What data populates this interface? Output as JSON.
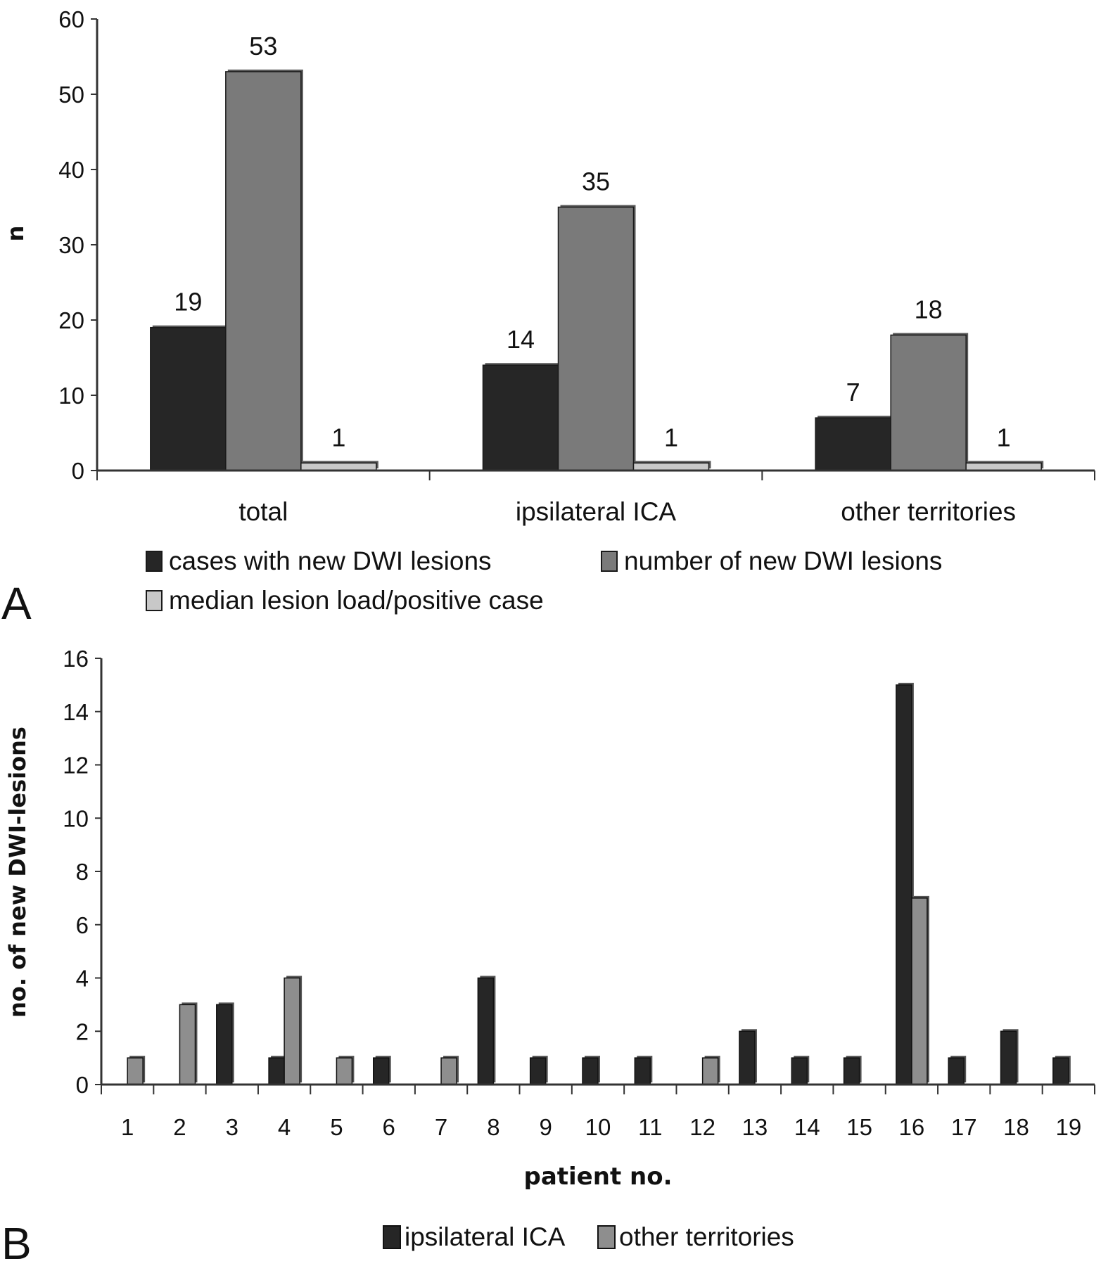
{
  "colors": {
    "dark": "#262626",
    "mid": "#7a7a7a",
    "light": "#c8c8c8",
    "b_other": "#8e8e8e",
    "axis": "#333333"
  },
  "chart_data": [
    {
      "panel": "A",
      "type": "bar",
      "ylabel": "n",
      "ylim": [
        0,
        60
      ],
      "yticks": [
        0,
        10,
        20,
        30,
        40,
        50,
        60
      ],
      "categories": [
        "total",
        "ipsilateral ICA",
        "other territories"
      ],
      "series": [
        {
          "name": "cases with new DWI lesions",
          "values": [
            19,
            14,
            7
          ],
          "color_key": "dark"
        },
        {
          "name": "number of new DWI lesions",
          "values": [
            53,
            35,
            18
          ],
          "color_key": "mid"
        },
        {
          "name": "median lesion load/positive case",
          "values": [
            1,
            1,
            1
          ],
          "color_key": "light"
        }
      ],
      "data_labels": true,
      "legend_position": "bottom",
      "grid": false
    },
    {
      "panel": "B",
      "type": "bar",
      "xlabel": "patient no.",
      "ylabel": "no. of new DWI-lesions",
      "ylim": [
        0,
        16
      ],
      "yticks": [
        0,
        2,
        4,
        6,
        8,
        10,
        12,
        14,
        16
      ],
      "categories": [
        "1",
        "2",
        "3",
        "4",
        "5",
        "6",
        "7",
        "8",
        "9",
        "10",
        "11",
        "12",
        "13",
        "14",
        "15",
        "16",
        "17",
        "18",
        "19"
      ],
      "series": [
        {
          "name": "ipsilateral ICA",
          "values": [
            0,
            0,
            3,
            1,
            0,
            1,
            0,
            4,
            1,
            1,
            1,
            0,
            2,
            1,
            1,
            15,
            1,
            2,
            1
          ],
          "color_key": "dark"
        },
        {
          "name": "other territories",
          "values": [
            1,
            3,
            0,
            4,
            1,
            0,
            1,
            0,
            0,
            0,
            0,
            1,
            0,
            0,
            0,
            7,
            0,
            0,
            0
          ],
          "color_key": "b_other"
        }
      ],
      "data_labels": false,
      "legend_position": "bottom",
      "grid": false
    }
  ]
}
